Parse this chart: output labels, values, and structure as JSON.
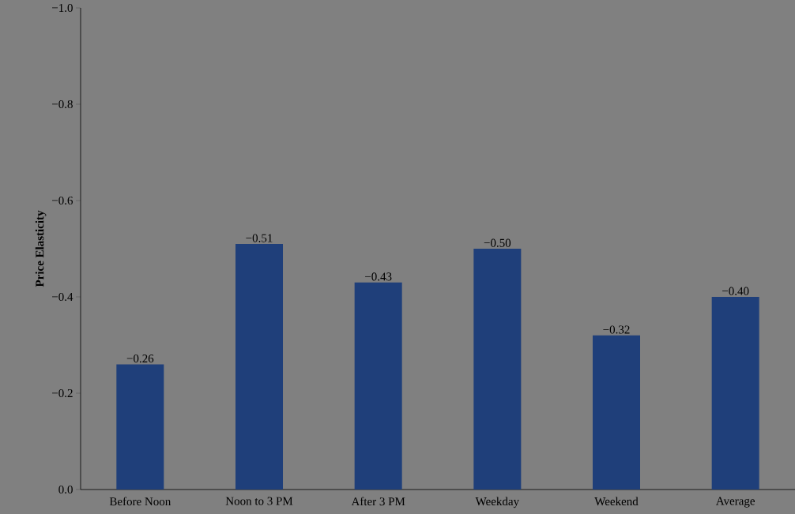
{
  "chart_data": {
    "type": "bar",
    "ylabel": "Price Elasticity",
    "categories": [
      "Before Noon",
      "Noon to 3 PM",
      "After 3 PM",
      "Weekday",
      "Weekend",
      "Average"
    ],
    "values": [
      -0.26,
      -0.51,
      -0.43,
      -0.5,
      -0.32,
      -0.4
    ],
    "value_labels": [
      "−0.26",
      "−0.51",
      "−0.43",
      "−0.50",
      "−0.32",
      "−0.40"
    ],
    "color": "#1f3f7a",
    "ylim": [
      0,
      -1
    ],
    "yticks": [
      {
        "value": 0,
        "label": "0.0"
      },
      {
        "value": -0.2,
        "label": "−0.2"
      },
      {
        "value": -0.4,
        "label": "−0.4"
      },
      {
        "value": -0.6,
        "label": "−0.6"
      },
      {
        "value": -0.8,
        "label": "−0.8"
      },
      {
        "value": -1,
        "label": "−1.0"
      }
    ],
    "grid": false
  }
}
